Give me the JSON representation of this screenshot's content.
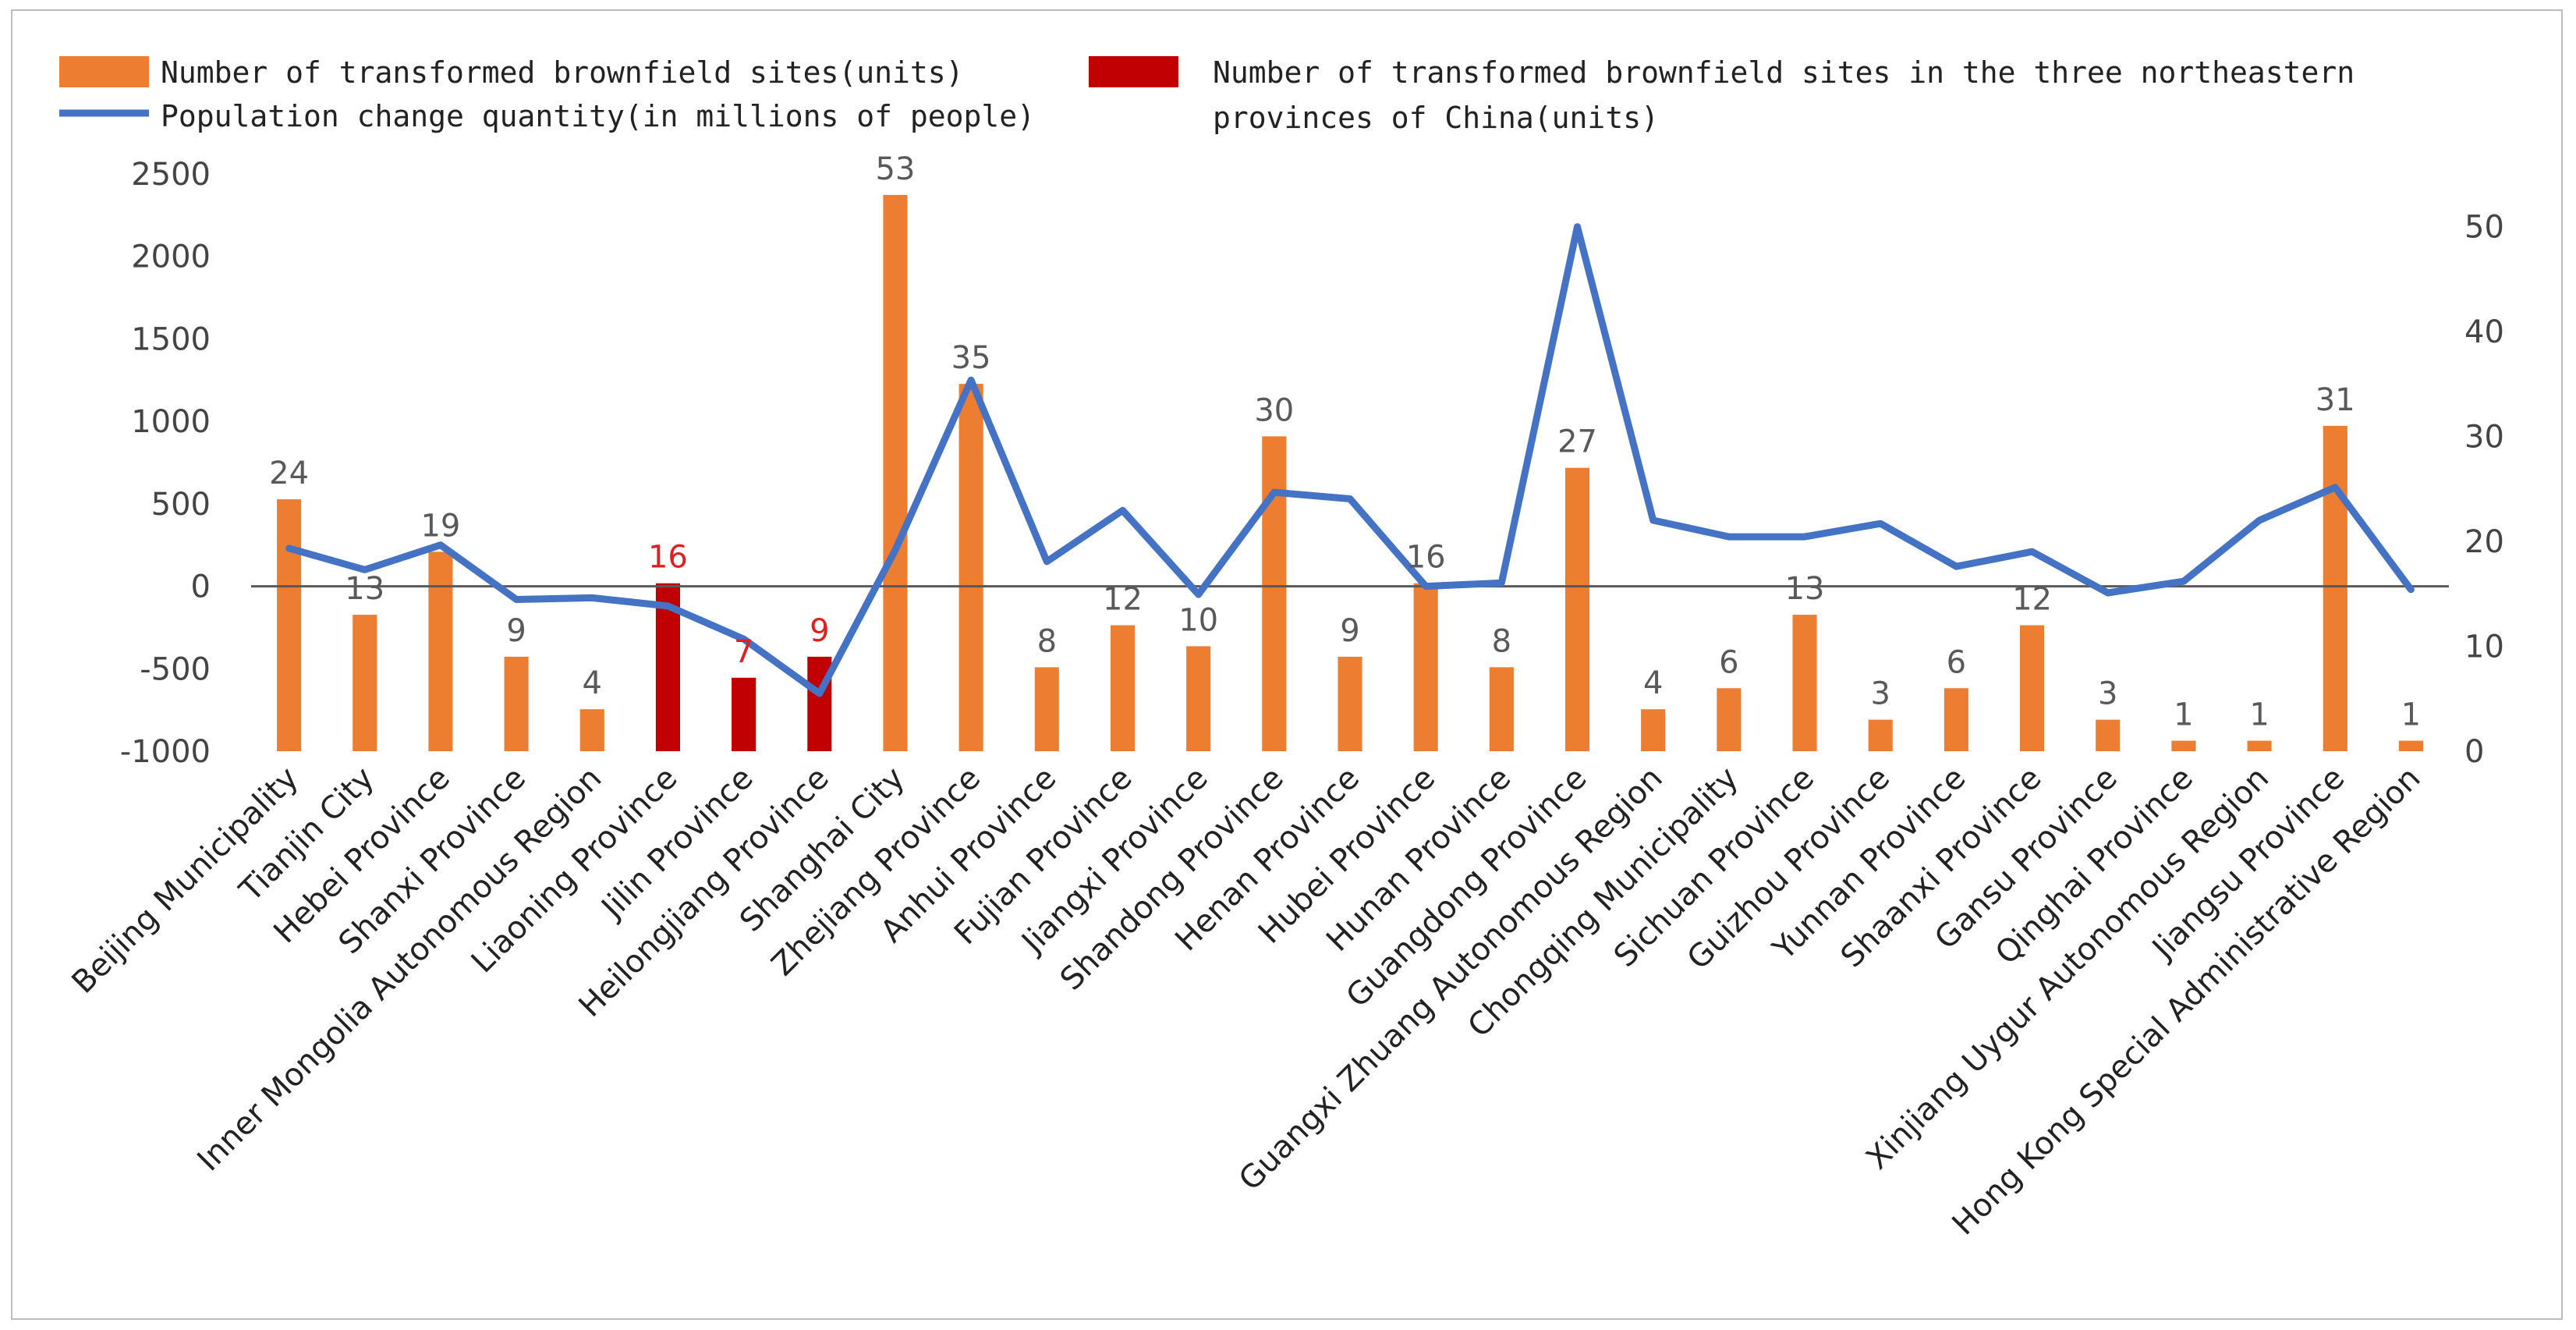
{
  "chart_data": {
    "type": "bar",
    "title": "",
    "xlabel": "",
    "ylabel": "",
    "categories": [
      "Beijing Municipality",
      "Tianjin City",
      "Hebei Province",
      "Shanxi Province",
      "Inner Mongolia Autonomous Region",
      "Liaoning Province",
      "Jilin Province",
      "Heilongjiang Province",
      "Shanghai City",
      "Zhejiang Province",
      "Anhui Province",
      "Fujian Province",
      "Jiangxi Province",
      "Shandong Province",
      "Henan Province",
      "Hubei Province",
      "Hunan Province",
      "Guangdong Province",
      "Guangxi Zhuang Autonomous Region",
      "Chongqing Municipality",
      "Sichuan Province",
      "Guizhou Province",
      "Yunnan Province",
      "Shaanxi Province",
      "Gansu Province",
      "Qinghai Province",
      "Xinjiang Uygur Autonomous Region",
      "Jiangsu Province",
      "Hong Kong Special Administrative Region"
    ],
    "series": [
      {
        "name": "Number of transformed brownfield sites(units)",
        "kind": "bar",
        "axis": "right",
        "color": "#ED7D31",
        "values": [
          24,
          13,
          19,
          9,
          4,
          null,
          null,
          null,
          53,
          35,
          8,
          12,
          10,
          30,
          9,
          16,
          8,
          27,
          4,
          6,
          13,
          3,
          6,
          12,
          3,
          1,
          1,
          31,
          1
        ]
      },
      {
        "name": "Number of transformed brownfield sites in the three northeastern provinces of China(units)",
        "kind": "bar",
        "axis": "right",
        "color": "#C00000",
        "values": [
          null,
          null,
          null,
          null,
          null,
          16,
          7,
          9,
          null,
          null,
          null,
          null,
          null,
          null,
          null,
          null,
          null,
          null,
          null,
          null,
          null,
          null,
          null,
          null,
          null,
          null,
          null,
          null,
          null
        ]
      },
      {
        "name": "Population change quantity(in millions of people)",
        "kind": "line",
        "axis": "left",
        "color": "#4472C4",
        "values": [
          230,
          100,
          250,
          -80,
          -70,
          -120,
          -320,
          -650,
          220,
          1250,
          150,
          460,
          -50,
          570,
          530,
          0,
          20,
          2180,
          400,
          300,
          300,
          380,
          120,
          210,
          -40,
          30,
          400,
          600,
          -20
        ]
      }
    ],
    "y_left": {
      "range": [
        -1000,
        2500
      ],
      "ticks": [
        -1000,
        -500,
        0,
        500,
        1000,
        1500,
        2000,
        2500
      ]
    },
    "y_right": {
      "range": [
        0,
        55
      ],
      "ticks": [
        0,
        10,
        20,
        30,
        40,
        50
      ]
    },
    "grid": false,
    "legend_position": "top-left",
    "label_colors": {
      "default": "#595959",
      "northeast": "#E02020"
    }
  }
}
